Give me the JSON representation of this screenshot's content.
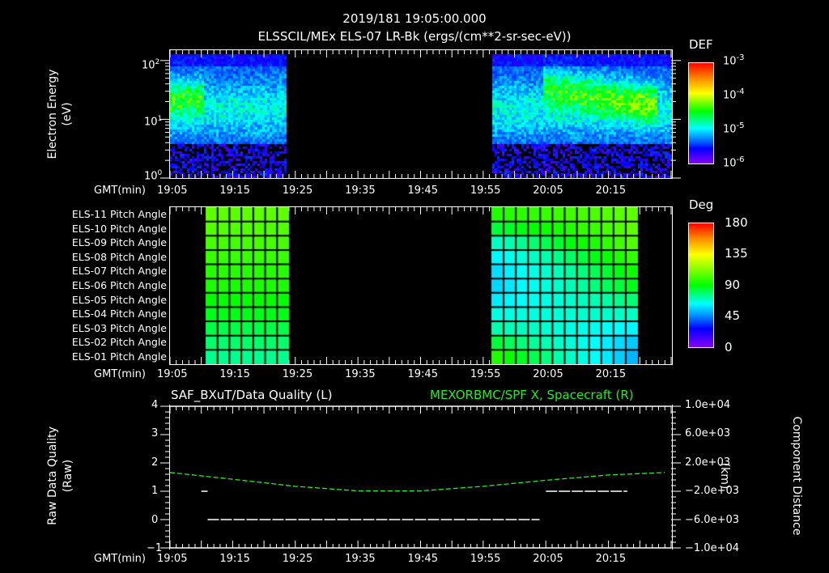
{
  "header": {
    "timestamp": "2019/181 19:05:00.000",
    "subtitle": "ELSSCIL/MEx ELS-07 LR-Bk  (ergs/(cm**2-sr-sec-eV))"
  },
  "panel1": {
    "ylabel": "Electron Energy",
    "yunits": "(eV)",
    "yticks": [
      {
        "base": "10",
        "exp": "2"
      },
      {
        "base": "10",
        "exp": "1"
      },
      {
        "base": "10",
        "exp": "0"
      }
    ],
    "colorbar": {
      "title": "DEF",
      "ticks": [
        {
          "base": "10",
          "exp": "-3"
        },
        {
          "base": "10",
          "exp": "-4"
        },
        {
          "base": "10",
          "exp": "-5"
        },
        {
          "base": "10",
          "exp": "-6"
        }
      ]
    }
  },
  "panel2": {
    "row_labels": [
      "ELS-11 Pitch Angle",
      "ELS-10 Pitch Angle",
      "ELS-09 Pitch Angle",
      "ELS-08 Pitch Angle",
      "ELS-07 Pitch Angle",
      "ELS-06 Pitch Angle",
      "ELS-05 Pitch Angle",
      "ELS-04 Pitch Angle",
      "ELS-03 Pitch Angle",
      "ELS-02 Pitch Angle",
      "ELS-01 Pitch Angle"
    ],
    "colorbar": {
      "title": "Deg",
      "ticks": [
        "180",
        "135",
        "90",
        "45",
        "0"
      ]
    }
  },
  "panel3": {
    "left_title": "SAF_BXuT/Data Quality (L)",
    "right_title": "MEXORBMC/SPF X, Spacecraft (R)",
    "ylabel": "Raw Data Quality",
    "yunits": "(Raw)",
    "yticks": [
      "4",
      "3",
      "2",
      "1",
      "0",
      "−1"
    ],
    "right_ylabel": "Component Distance",
    "right_yunits": "(km)",
    "right_yticks": [
      "1.0e+04",
      "6.0e+03",
      "2.0e+03",
      "−2.0e+03",
      "−6.0e+03",
      "−1.0e+04"
    ],
    "colors": {
      "left_series": "#ffffff",
      "right_series": "#22ee22"
    }
  },
  "xaxis": {
    "label": "GMT(min)",
    "ticks": [
      "19:05",
      "19:15",
      "19:25",
      "19:35",
      "19:45",
      "19:55",
      "20:05",
      "20:15"
    ]
  },
  "chart_data": [
    {
      "type": "heatmap",
      "title": "ELSSCIL/MEx ELS-07 LR-Bk (ergs/(cm**2-sr-sec-eV))",
      "xlabel": "GMT(min)",
      "ylabel": "Electron Energy (eV)",
      "yscale": "log",
      "ylim": [
        1,
        150
      ],
      "x_ticks": [
        "19:05",
        "19:15",
        "19:25",
        "19:35",
        "19:45",
        "19:55",
        "20:05",
        "20:15"
      ],
      "data_coverage": [
        {
          "start": "19:05",
          "end": "19:23"
        },
        {
          "start": "19:55",
          "end": "20:24"
        }
      ],
      "colorbar": {
        "label": "DEF",
        "scale": "log",
        "range": [
          1e-06,
          0.001
        ]
      },
      "notes": "Peak ~1e-4 near 20-60 eV at 19:05-19:09 and 20:03-20:15; noise floor below ~5 eV"
    },
    {
      "type": "heatmap",
      "title": "Pitch Angle",
      "xlabel": "GMT(min)",
      "rows": [
        "ELS-11",
        "ELS-10",
        "ELS-09",
        "ELS-08",
        "ELS-07",
        "ELS-06",
        "ELS-05",
        "ELS-04",
        "ELS-03",
        "ELS-02",
        "ELS-01"
      ],
      "data_coverage": [
        {
          "start": "19:10",
          "end": "19:23"
        },
        {
          "start": "19:55",
          "end": "20:18"
        }
      ],
      "colorbar": {
        "label": "Deg",
        "range": [
          0,
          180
        ],
        "ticks": [
          0,
          45,
          90,
          135,
          180
        ]
      },
      "block1_values_deg": [
        105,
        103,
        101,
        99,
        96,
        94,
        91,
        88,
        84,
        81,
        78
      ],
      "block2_start_values_deg": [
        95,
        85,
        72,
        62,
        58,
        57,
        60,
        67,
        75,
        85,
        95
      ],
      "block2_end_values_deg": [
        105,
        105,
        103,
        98,
        92,
        88,
        80,
        72,
        62,
        55,
        52
      ]
    },
    {
      "type": "line",
      "title_left": "SAF_BXuT/Data Quality (L)",
      "title_right": "MEXORBMC/SPF X, Spacecraft (R)",
      "xlabel": "GMT(min)",
      "ylabel": "Raw Data Quality (Raw)",
      "ylim": [
        -1,
        4
      ],
      "y2label": "Component Distance (km)",
      "y2lim": [
        -10000,
        10000
      ],
      "series": [
        {
          "name": "Data Quality",
          "axis": "left",
          "color": "#ffffff",
          "segments": [
            {
              "x": [
                "19:10",
                "19:11"
              ],
              "y": 1
            },
            {
              "x": [
                "19:11",
                "20:04"
              ],
              "y": 0
            },
            {
              "x": [
                "20:05",
                "20:18"
              ],
              "y": 1
            }
          ]
        },
        {
          "name": "SPF X",
          "axis": "right",
          "color": "#22ee22",
          "x": [
            "19:05",
            "19:15",
            "19:25",
            "19:35",
            "19:45",
            "19:55",
            "20:05",
            "20:15",
            "20:24"
          ],
          "values": [
            650,
            -300,
            -1300,
            -1950,
            -1950,
            -1300,
            -450,
            300,
            650
          ]
        }
      ]
    }
  ]
}
